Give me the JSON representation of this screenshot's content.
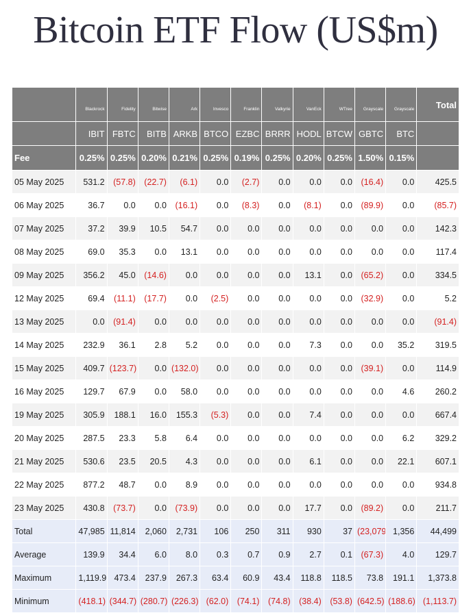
{
  "title": "Bitcoin ETF Flow (US$m)",
  "header": {
    "issuers": [
      "Blackrock",
      "Fidelity",
      "Bitwise",
      "Ark",
      "Invesco",
      "Franklin",
      "Valkyrie",
      "VanEck",
      "WTree",
      "Grayscale",
      "Grayscale"
    ],
    "tickers": [
      "IBIT",
      "FBTC",
      "BITB",
      "ARKB",
      "BTCO",
      "EZBC",
      "BRRR",
      "HODL",
      "BTCW",
      "GBTC",
      "BTC"
    ],
    "fees": [
      "0.25%",
      "0.25%",
      "0.20%",
      "0.21%",
      "0.25%",
      "0.19%",
      "0.25%",
      "0.20%",
      "0.25%",
      "1.50%",
      "0.15%"
    ],
    "total_label": "Total",
    "fee_label": "Fee"
  },
  "rows": [
    {
      "date": "05 May 2025",
      "values": [
        "531.2",
        "(57.8)",
        "(22.7)",
        "(6.1)",
        "0.0",
        "(2.7)",
        "0.0",
        "0.0",
        "0.0",
        "(16.4)",
        "0.0"
      ],
      "total": "425.5"
    },
    {
      "date": "06 May 2025",
      "values": [
        "36.7",
        "0.0",
        "0.0",
        "(16.1)",
        "0.0",
        "(8.3)",
        "0.0",
        "(8.1)",
        "0.0",
        "(89.9)",
        "0.0"
      ],
      "total": "(85.7)"
    },
    {
      "date": "07 May 2025",
      "values": [
        "37.2",
        "39.9",
        "10.5",
        "54.7",
        "0.0",
        "0.0",
        "0.0",
        "0.0",
        "0.0",
        "0.0",
        "0.0"
      ],
      "total": "142.3"
    },
    {
      "date": "08 May 2025",
      "values": [
        "69.0",
        "35.3",
        "0.0",
        "13.1",
        "0.0",
        "0.0",
        "0.0",
        "0.0",
        "0.0",
        "0.0",
        "0.0"
      ],
      "total": "117.4"
    },
    {
      "date": "09 May 2025",
      "values": [
        "356.2",
        "45.0",
        "(14.6)",
        "0.0",
        "0.0",
        "0.0",
        "0.0",
        "13.1",
        "0.0",
        "(65.2)",
        "0.0"
      ],
      "total": "334.5"
    },
    {
      "date": "12 May 2025",
      "values": [
        "69.4",
        "(11.1)",
        "(17.7)",
        "0.0",
        "(2.5)",
        "0.0",
        "0.0",
        "0.0",
        "0.0",
        "(32.9)",
        "0.0"
      ],
      "total": "5.2"
    },
    {
      "date": "13 May 2025",
      "values": [
        "0.0",
        "(91.4)",
        "0.0",
        "0.0",
        "0.0",
        "0.0",
        "0.0",
        "0.0",
        "0.0",
        "0.0",
        "0.0"
      ],
      "total": "(91.4)"
    },
    {
      "date": "14 May 2025",
      "values": [
        "232.9",
        "36.1",
        "2.8",
        "5.2",
        "0.0",
        "0.0",
        "0.0",
        "7.3",
        "0.0",
        "0.0",
        "35.2"
      ],
      "total": "319.5"
    },
    {
      "date": "15 May 2025",
      "values": [
        "409.7",
        "(123.7)",
        "0.0",
        "(132.0)",
        "0.0",
        "0.0",
        "0.0",
        "0.0",
        "0.0",
        "(39.1)",
        "0.0"
      ],
      "total": "114.9"
    },
    {
      "date": "16 May 2025",
      "values": [
        "129.7",
        "67.9",
        "0.0",
        "58.0",
        "0.0",
        "0.0",
        "0.0",
        "0.0",
        "0.0",
        "0.0",
        "4.6"
      ],
      "total": "260.2"
    },
    {
      "date": "19 May 2025",
      "values": [
        "305.9",
        "188.1",
        "16.0",
        "155.3",
        "(5.3)",
        "0.0",
        "0.0",
        "7.4",
        "0.0",
        "0.0",
        "0.0"
      ],
      "total": "667.4"
    },
    {
      "date": "20 May 2025",
      "values": [
        "287.5",
        "23.3",
        "5.8",
        "6.4",
        "0.0",
        "0.0",
        "0.0",
        "0.0",
        "0.0",
        "0.0",
        "6.2"
      ],
      "total": "329.2"
    },
    {
      "date": "21 May 2025",
      "values": [
        "530.6",
        "23.5",
        "20.5",
        "4.3",
        "0.0",
        "0.0",
        "0.0",
        "6.1",
        "0.0",
        "0.0",
        "22.1"
      ],
      "total": "607.1"
    },
    {
      "date": "22 May 2025",
      "values": [
        "877.2",
        "48.7",
        "0.0",
        "8.9",
        "0.0",
        "0.0",
        "0.0",
        "0.0",
        "0.0",
        "0.0",
        "0.0"
      ],
      "total": "934.8"
    },
    {
      "date": "23 May 2025",
      "values": [
        "430.8",
        "(73.7)",
        "0.0",
        "(73.9)",
        "0.0",
        "0.0",
        "0.0",
        "17.7",
        "0.0",
        "(89.2)",
        "0.0"
      ],
      "total": "211.7"
    }
  ],
  "summary": [
    {
      "label": "Total",
      "values": [
        "47,985",
        "11,814",
        "2,060",
        "2,731",
        "106",
        "250",
        "311",
        "930",
        "37",
        "(23,079)",
        "1,356"
      ],
      "total": "44,499"
    },
    {
      "label": "Average",
      "values": [
        "139.9",
        "34.4",
        "6.0",
        "8.0",
        "0.3",
        "0.7",
        "0.9",
        "2.7",
        "0.1",
        "(67.3)",
        "4.0"
      ],
      "total": "129.7"
    },
    {
      "label": "Maximum",
      "values": [
        "1,119.9",
        "473.4",
        "237.9",
        "267.3",
        "63.4",
        "60.9",
        "43.4",
        "118.8",
        "118.5",
        "73.8",
        "191.1"
      ],
      "total": "1,373.8"
    },
    {
      "label": "Minimum",
      "values": [
        "(418.1)",
        "(344.7)",
        "(280.7)",
        "(226.3)",
        "(62.0)",
        "(74.1)",
        "(74.8)",
        "(38.4)",
        "(53.8)",
        "(642.5)",
        "(188.6)"
      ],
      "total": "(1,113.7)"
    }
  ],
  "colors": {
    "header_bg": "#7e7e7e",
    "negative": "#d42020",
    "summary_bg": "#e7ecf8",
    "title": "#2f2f3f"
  }
}
